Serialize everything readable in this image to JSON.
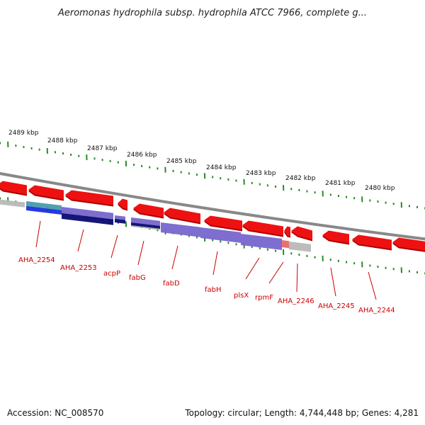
{
  "title": "Aeromonas hydrophila subsp. hydrophila ATCC 7966, complete g...",
  "footer": {
    "accession": "Accession: NC_008570",
    "topology": "Topology: circular; Length: 4,744,448 bp; Genes: 4,281"
  },
  "scale_labels": [
    "2489 kbp",
    "2488 kbp",
    "2487 kbp",
    "2486 kbp",
    "2485 kbp",
    "2484 kbp",
    "2483 kbp",
    "2482 kbp",
    "2481 kbp",
    "2480 kbp"
  ],
  "gene_labels": [
    "AHA_2254",
    "AHA_2253",
    "acpP",
    "fabG",
    "fabD",
    "fabH",
    "plsX",
    "rpmF",
    "AHA_2246",
    "AHA_2245",
    "AHA_2244"
  ],
  "colors": {
    "gene_fwd": "#ee1111",
    "gene_shadow": "#aa0000",
    "backbone": "#888888",
    "ticks": "#2a8a2a",
    "label": "#cc0000",
    "blue": "#1a2ee0",
    "navy": "#0a0a70",
    "purple": "#7766cc",
    "grey": "#b8b8b8",
    "teal": "#4a9ab0"
  }
}
